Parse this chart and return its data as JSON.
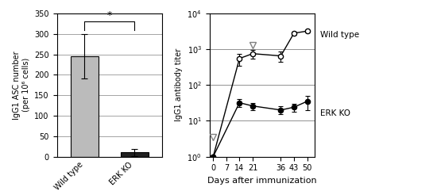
{
  "bar_categories": [
    "Wild type",
    "ERK KO"
  ],
  "bar_values": [
    245,
    10
  ],
  "bar_errors": [
    55,
    8
  ],
  "bar_colors": [
    "#bbbbbb",
    "#222222"
  ],
  "bar_ylabel": "IgG1 ASC number\n(per 10⁶ cells)",
  "bar_ylim": [
    0,
    350
  ],
  "bar_yticks": [
    0,
    50,
    100,
    150,
    200,
    250,
    300,
    350
  ],
  "significance_text": "*",
  "line_days": [
    0,
    7,
    14,
    21,
    36,
    43,
    50
  ],
  "wt_values": [
    1,
    null,
    550,
    750,
    650,
    2800,
    3200
  ],
  "wt_errors_lo": [
    0,
    0,
    200,
    200,
    200,
    350,
    250
  ],
  "wt_errors_hi": [
    0,
    0,
    200,
    200,
    200,
    350,
    250
  ],
  "ko_values": [
    1,
    null,
    32,
    26,
    20,
    24,
    35
  ],
  "ko_errors_lo": [
    0,
    0,
    8,
    6,
    5,
    6,
    15
  ],
  "ko_errors_hi": [
    0,
    0,
    8,
    6,
    5,
    6,
    15
  ],
  "line_xlabel": "Days after immunization",
  "line_ylabel": "IgG1 antibody titer",
  "wt_triangle_day": 21,
  "wt_triangle_val": 1300,
  "ko_triangle_day": 0,
  "ko_triangle_val": 3.5,
  "wt_label": "Wild type",
  "ko_label": "ERK KO",
  "background_color": "#ffffff",
  "figwidth": 5.5,
  "figheight": 2.41
}
